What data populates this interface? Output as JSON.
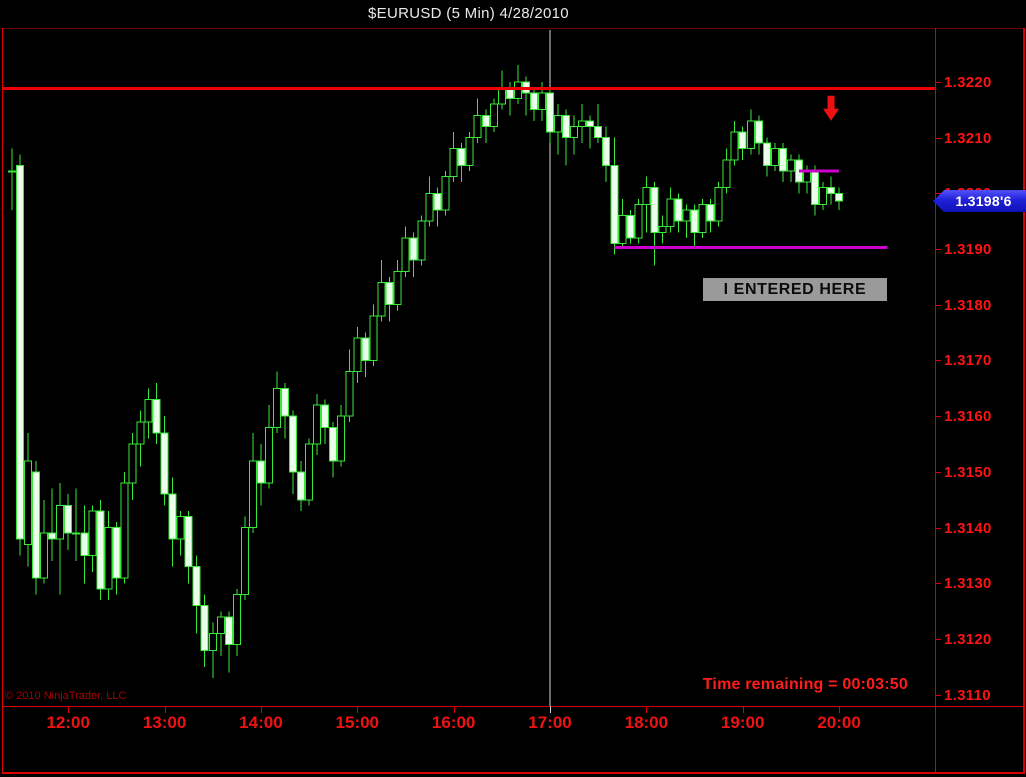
{
  "title": "$EURUSD (5 Min)  4/28/2010",
  "watermark": "© 2010 NinjaTrader, LLC",
  "status": {
    "time_remaining": "Time remaining = 00:03:50"
  },
  "colors": {
    "background": "#000000",
    "axis_text": "#ff1414",
    "frame": "#dd0000",
    "candle_outline": "#3ae83a",
    "candle_down_fill": "#e9ffe9",
    "candle_up_fill": "#000000",
    "resistance_line": "#ee0000",
    "support_line": "#cc00cc",
    "session_line": "#d8d8d8",
    "price_tag_bg": "#2020d8",
    "entry_label_bg": "#9a9a9a",
    "arrow": "#ee1111"
  },
  "chart_data": {
    "type": "candlestick",
    "symbol": "$EURUSD",
    "interval": "5 Min",
    "date": "4/28/2010",
    "title": "$EURUSD (5 Min)  4/28/2010",
    "grid": false,
    "x_ticks": [
      "12:00",
      "13:00",
      "14:00",
      "15:00",
      "16:00",
      "17:00",
      "18:00",
      "19:00",
      "20:00"
    ],
    "y_ticks": [
      "1.3220",
      "1.3210",
      "1.3200",
      "1.3190",
      "1.3180",
      "1.3170",
      "1.3160",
      "1.3150",
      "1.3140",
      "1.3130",
      "1.3120",
      "1.3110"
    ],
    "y_axis_range": [
      1.3108,
      1.32293
    ],
    "start_time": "11:25",
    "interval_minutes": 5,
    "candles": [
      [
        "11:25",
        1.3204,
        1.3208,
        1.3197,
        1.3204
      ],
      [
        "11:30",
        1.3205,
        1.3207,
        1.3135,
        1.3138
      ],
      [
        "11:35",
        1.3137,
        1.3157,
        1.3133,
        1.3152
      ],
      [
        "11:40",
        1.315,
        1.3152,
        1.3128,
        1.3131
      ],
      [
        "11:45",
        1.3131,
        1.3145,
        1.313,
        1.3139
      ],
      [
        "11:50",
        1.3139,
        1.3147,
        1.3134,
        1.3138
      ],
      [
        "11:55",
        1.3138,
        1.3148,
        1.3128,
        1.3144
      ],
      [
        "12:00",
        1.3144,
        1.3146,
        1.3136,
        1.3139
      ],
      [
        "12:05",
        1.3139,
        1.3147,
        1.3134,
        1.3139
      ],
      [
        "12:10",
        1.3139,
        1.3144,
        1.313,
        1.3135
      ],
      [
        "12:15",
        1.3135,
        1.3144,
        1.3132,
        1.3143
      ],
      [
        "12:20",
        1.3143,
        1.3145,
        1.3127,
        1.3129
      ],
      [
        "12:25",
        1.3129,
        1.3143,
        1.3127,
        1.314
      ],
      [
        "12:30",
        1.314,
        1.3141,
        1.3128,
        1.3131
      ],
      [
        "12:35",
        1.3131,
        1.315,
        1.313,
        1.3148
      ],
      [
        "12:40",
        1.3148,
        1.3157,
        1.3145,
        1.3155
      ],
      [
        "12:45",
        1.3155,
        1.3161,
        1.3151,
        1.3159
      ],
      [
        "12:50",
        1.3159,
        1.3165,
        1.3156,
        1.3163
      ],
      [
        "12:55",
        1.3163,
        1.3166,
        1.3155,
        1.3157
      ],
      [
        "13:00",
        1.3157,
        1.316,
        1.3144,
        1.3146
      ],
      [
        "13:05",
        1.3146,
        1.3149,
        1.3133,
        1.3138
      ],
      [
        "13:10",
        1.3138,
        1.3143,
        1.3135,
        1.3142
      ],
      [
        "13:15",
        1.3142,
        1.3143,
        1.313,
        1.3133
      ],
      [
        "13:20",
        1.3133,
        1.3135,
        1.3121,
        1.3126
      ],
      [
        "13:25",
        1.3126,
        1.3128,
        1.3115,
        1.3118
      ],
      [
        "13:30",
        1.3118,
        1.3123,
        1.3113,
        1.3121
      ],
      [
        "13:35",
        1.3121,
        1.3125,
        1.3117,
        1.3124
      ],
      [
        "13:40",
        1.3124,
        1.3125,
        1.3114,
        1.3119
      ],
      [
        "13:45",
        1.3119,
        1.3129,
        1.3117,
        1.3128
      ],
      [
        "13:50",
        1.3128,
        1.3142,
        1.3127,
        1.314
      ],
      [
        "13:55",
        1.314,
        1.3157,
        1.3139,
        1.3152
      ],
      [
        "14:00",
        1.3152,
        1.3155,
        1.3144,
        1.3148
      ],
      [
        "14:05",
        1.3148,
        1.3162,
        1.3147,
        1.3158
      ],
      [
        "14:10",
        1.3158,
        1.3168,
        1.3157,
        1.3165
      ],
      [
        "14:15",
        1.3165,
        1.3166,
        1.3156,
        1.316
      ],
      [
        "14:20",
        1.316,
        1.3161,
        1.3146,
        1.315
      ],
      [
        "14:25",
        1.315,
        1.3152,
        1.3143,
        1.3145
      ],
      [
        "14:30",
        1.3145,
        1.3156,
        1.3144,
        1.3155
      ],
      [
        "14:35",
        1.3155,
        1.3164,
        1.3153,
        1.3162
      ],
      [
        "14:40",
        1.3162,
        1.3163,
        1.3155,
        1.3158
      ],
      [
        "14:45",
        1.3158,
        1.3159,
        1.3149,
        1.3152
      ],
      [
        "14:50",
        1.3152,
        1.3162,
        1.3151,
        1.316
      ],
      [
        "14:55",
        1.316,
        1.3172,
        1.3159,
        1.3168
      ],
      [
        "15:00",
        1.3168,
        1.3176,
        1.3166,
        1.3174
      ],
      [
        "15:05",
        1.3174,
        1.3175,
        1.3167,
        1.317
      ],
      [
        "15:10",
        1.317,
        1.318,
        1.3169,
        1.3178
      ],
      [
        "15:15",
        1.3178,
        1.3188,
        1.3177,
        1.3184
      ],
      [
        "15:20",
        1.3184,
        1.3185,
        1.3177,
        1.318
      ],
      [
        "15:25",
        1.318,
        1.3188,
        1.3179,
        1.3186
      ],
      [
        "15:30",
        1.3186,
        1.3194,
        1.3185,
        1.3192
      ],
      [
        "15:35",
        1.3192,
        1.3193,
        1.3185,
        1.3188
      ],
      [
        "15:40",
        1.3188,
        1.3196,
        1.3187,
        1.3195
      ],
      [
        "15:45",
        1.3195,
        1.3203,
        1.3194,
        1.32
      ],
      [
        "15:50",
        1.32,
        1.3201,
        1.3194,
        1.3197
      ],
      [
        "15:55",
        1.3197,
        1.3204,
        1.3196,
        1.3203
      ],
      [
        "16:00",
        1.3203,
        1.3211,
        1.3202,
        1.3208
      ],
      [
        "16:05",
        1.3208,
        1.3209,
        1.3202,
        1.3205
      ],
      [
        "16:10",
        1.3205,
        1.3211,
        1.3204,
        1.321
      ],
      [
        "16:15",
        1.321,
        1.3217,
        1.3209,
        1.3214
      ],
      [
        "16:20",
        1.3214,
        1.3215,
        1.3209,
        1.3212
      ],
      [
        "16:25",
        1.3212,
        1.3217,
        1.3211,
        1.3216
      ],
      [
        "16:30",
        1.3216,
        1.3222,
        1.3215,
        1.3219
      ],
      [
        "16:35",
        1.3219,
        1.322,
        1.3214,
        1.3217
      ],
      [
        "16:40",
        1.3217,
        1.3223,
        1.3216,
        1.322
      ],
      [
        "16:45",
        1.322,
        1.3221,
        1.3214,
        1.3218
      ],
      [
        "16:50",
        1.3218,
        1.3219,
        1.3213,
        1.3215
      ],
      [
        "16:55",
        1.3215,
        1.322,
        1.3213,
        1.3218
      ],
      [
        "17:00",
        1.3218,
        1.3219,
        1.3209,
        1.3211
      ],
      [
        "17:05",
        1.3211,
        1.3216,
        1.3207,
        1.3214
      ],
      [
        "17:10",
        1.3214,
        1.3215,
        1.3205,
        1.321
      ],
      [
        "17:15",
        1.321,
        1.3214,
        1.3207,
        1.3212
      ],
      [
        "17:20",
        1.3212,
        1.3216,
        1.3209,
        1.3213
      ],
      [
        "17:25",
        1.3213,
        1.3214,
        1.3208,
        1.3212
      ],
      [
        "17:30",
        1.3212,
        1.3216,
        1.3209,
        1.321
      ],
      [
        "17:35",
        1.321,
        1.3212,
        1.3202,
        1.3205
      ],
      [
        "17:40",
        1.3205,
        1.321,
        1.3189,
        1.3191
      ],
      [
        "17:45",
        1.3191,
        1.3199,
        1.319,
        1.3196
      ],
      [
        "17:50",
        1.3196,
        1.3197,
        1.3191,
        1.3192
      ],
      [
        "17:55",
        1.3192,
        1.3199,
        1.3191,
        1.3198
      ],
      [
        "18:00",
        1.3198,
        1.3203,
        1.3193,
        1.3201
      ],
      [
        "18:05",
        1.3201,
        1.3202,
        1.3187,
        1.3193
      ],
      [
        "18:10",
        1.3193,
        1.3196,
        1.3191,
        1.3194
      ],
      [
        "18:15",
        1.3194,
        1.3201,
        1.3193,
        1.3199
      ],
      [
        "18:20",
        1.3199,
        1.32,
        1.3193,
        1.3195
      ],
      [
        "18:25",
        1.3195,
        1.3198,
        1.3192,
        1.3197
      ],
      [
        "18:30",
        1.3197,
        1.3198,
        1.319,
        1.3193
      ],
      [
        "18:35",
        1.3193,
        1.3199,
        1.3192,
        1.3198
      ],
      [
        "18:40",
        1.3198,
        1.3199,
        1.3193,
        1.3195
      ],
      [
        "18:45",
        1.3195,
        1.3202,
        1.3194,
        1.3201
      ],
      [
        "18:50",
        1.3201,
        1.3208,
        1.32,
        1.3206
      ],
      [
        "18:55",
        1.3206,
        1.3213,
        1.3205,
        1.3211
      ],
      [
        "19:00",
        1.3211,
        1.3212,
        1.3206,
        1.3208
      ],
      [
        "19:05",
        1.3208,
        1.3215,
        1.3207,
        1.3213
      ],
      [
        "19:10",
        1.3213,
        1.3214,
        1.3207,
        1.3209
      ],
      [
        "19:15",
        1.3209,
        1.321,
        1.3203,
        1.3205
      ],
      [
        "19:20",
        1.3205,
        1.3209,
        1.3204,
        1.3208
      ],
      [
        "19:25",
        1.3208,
        1.3209,
        1.3202,
        1.3204
      ],
      [
        "19:30",
        1.3204,
        1.3207,
        1.3202,
        1.3206
      ],
      [
        "19:35",
        1.3206,
        1.3207,
        1.32,
        1.3202
      ],
      [
        "19:40",
        1.3202,
        1.3205,
        1.32,
        1.3204
      ],
      [
        "19:45",
        1.3204,
        1.3205,
        1.3196,
        1.3198
      ],
      [
        "19:50",
        1.3198,
        1.3202,
        1.3197,
        1.3201
      ],
      [
        "19:55",
        1.3201,
        1.3203,
        1.3198,
        1.32
      ],
      [
        "20:00",
        1.32,
        1.3201,
        1.3197,
        1.31986
      ]
    ],
    "overlays": {
      "resistance_line": {
        "price": 1.32188,
        "color": "#ee0000"
      },
      "support_line": {
        "price": 1.31903,
        "from": "17:40",
        "to": "20:30",
        "color": "#cc00cc"
      },
      "short_trade_line": {
        "price": 1.3204,
        "from": "19:35",
        "to": "20:00",
        "color": "#cc00cc"
      },
      "session_vline": {
        "time": "17:00",
        "color": "#d8d8d8"
      },
      "down_arrow": {
        "time": "19:55",
        "price": 1.32175,
        "color": "#ee1111"
      },
      "entry_box": {
        "label": "I ENTERED HERE",
        "from": "18:35",
        "to": "20:30",
        "price": 1.31848
      },
      "last_price": 1.31986,
      "last_price_label": "1.3198'6"
    }
  }
}
